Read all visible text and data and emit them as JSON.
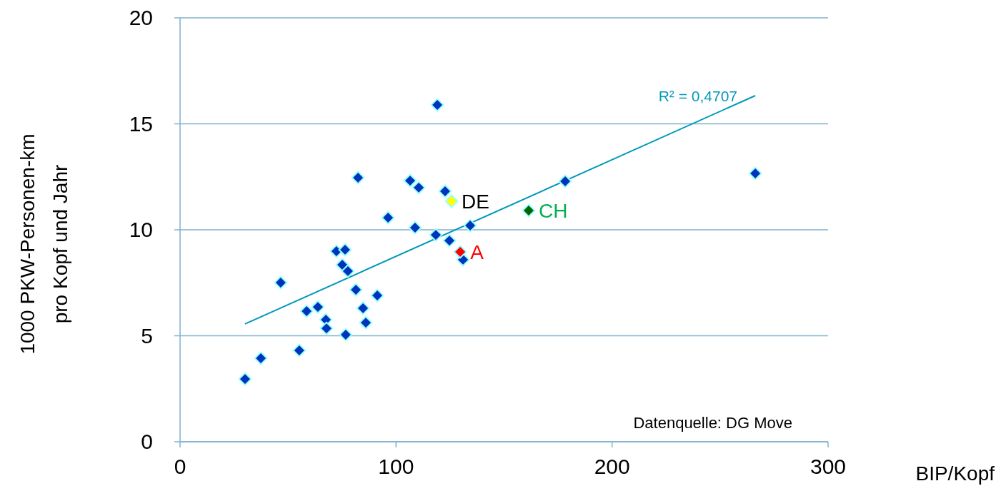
{
  "chart_data": {
    "type": "scatter",
    "xlabel": "BIP/Kopf",
    "ylabel": "1000 PKW-Personen-km\npro Kopf und Jahr",
    "xlim": [
      0,
      300
    ],
    "ylim": [
      0,
      20
    ],
    "xticks": [
      0,
      100,
      200,
      300
    ],
    "yticks": [
      0,
      5,
      10,
      15,
      20
    ],
    "grid": "y",
    "marker": "diamond",
    "annotations": [
      "R² = 0,4707",
      "Datenquelle: DG Move"
    ],
    "series": [
      {
        "type": "line",
        "marker": "none",
        "color": "#0099bb",
        "x": [
          30.1,
          266.3
        ],
        "values": [
          5.56,
          16.33
        ]
      },
      {
        "color": "#0033bb",
        "x": [
          30.1,
          37.4,
          46.6,
          55.2,
          58.6,
          63.8,
          67.5,
          67.8,
          72.4,
          75.1,
          76.4,
          77.7,
          76.7,
          81.4,
          82.4,
          84.7,
          86.0,
          91.3,
          96.3,
          106.5,
          110.5,
          108.8,
          119.1,
          118.4,
          122.7,
          124.7,
          131.0,
          134.3,
          178.3,
          266.3
        ],
        "values": [
          2.96,
          3.94,
          7.51,
          4.31,
          6.16,
          6.36,
          5.76,
          5.35,
          8.99,
          8.35,
          9.06,
          8.05,
          5.05,
          7.17,
          12.46,
          6.3,
          5.62,
          6.9,
          10.57,
          12.32,
          11.99,
          10.1,
          15.89,
          9.76,
          11.82,
          9.49,
          8.59,
          10.2,
          12.29,
          12.66
        ]
      },
      {
        "name": "DE",
        "color": "#ffff00",
        "x": [
          125.7
        ],
        "values": [
          11.35
        ]
      },
      {
        "name": "A",
        "color": "#ff0000",
        "x": [
          129.7
        ],
        "values": [
          8.96
        ]
      },
      {
        "name": "CH",
        "color": "#006600",
        "x": [
          161.4
        ],
        "values": [
          10.91
        ]
      }
    ]
  }
}
